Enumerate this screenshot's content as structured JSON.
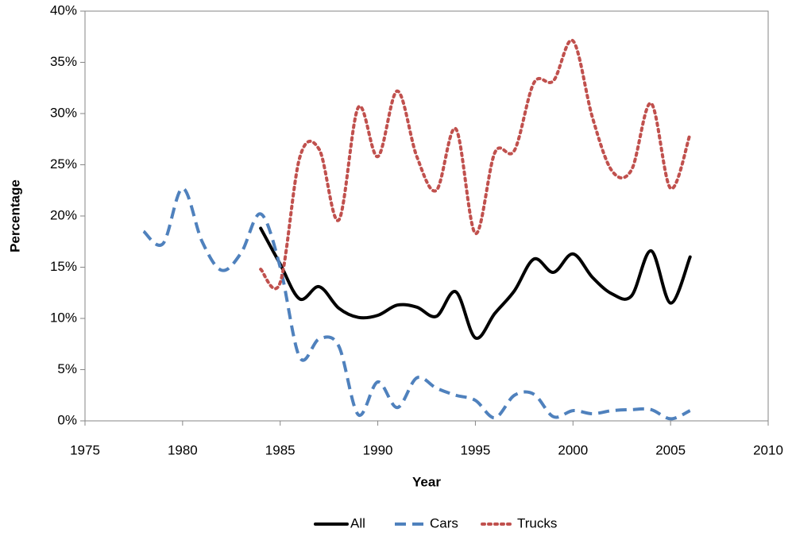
{
  "chart_data": {
    "type": "line",
    "xlabel": "Year",
    "ylabel": "Percentage",
    "x": [
      1978,
      1979,
      1980,
      1981,
      1982,
      1983,
      1984,
      1985,
      1986,
      1987,
      1988,
      1989,
      1990,
      1991,
      1992,
      1993,
      1994,
      1995,
      1996,
      1997,
      1998,
      1999,
      2000,
      2001,
      2002,
      2003,
      2004,
      2005,
      2006
    ],
    "series": [
      {
        "name": "All",
        "color": "#000000",
        "line_style": "solid",
        "values": [
          null,
          null,
          null,
          null,
          null,
          null,
          18.8,
          15.3,
          11.9,
          13.1,
          11.0,
          10.1,
          10.3,
          11.3,
          11.1,
          10.2,
          12.6,
          8.1,
          10.5,
          12.7,
          15.8,
          14.5,
          16.3,
          14.0,
          12.4,
          12.2,
          16.6,
          11.5,
          16.0
        ]
      },
      {
        "name": "Cars",
        "color": "#4f81bd",
        "line_style": "dashed",
        "values": [
          18.5,
          17.3,
          22.7,
          17.5,
          14.7,
          16.4,
          20.2,
          15.0,
          6.2,
          8.0,
          7.3,
          0.6,
          3.8,
          1.3,
          4.2,
          3.2,
          2.5,
          2.0,
          0.3,
          2.5,
          2.6,
          0.4,
          1.0,
          0.7,
          1.0,
          1.1,
          1.1,
          0.2,
          1.0
        ]
      },
      {
        "name": "Trucks",
        "color": "#c0504d",
        "line_style": "dotted",
        "values": [
          null,
          null,
          null,
          null,
          null,
          null,
          14.8,
          13.5,
          25.7,
          26.5,
          19.6,
          30.6,
          25.8,
          32.2,
          25.8,
          22.5,
          28.5,
          18.3,
          26.2,
          26.4,
          33.0,
          33.2,
          37.1,
          29.6,
          24.4,
          24.5,
          31.0,
          22.7,
          28.0
        ]
      }
    ],
    "xlim": [
      1975,
      2010
    ],
    "xticks": [
      1975,
      1980,
      1985,
      1990,
      1995,
      2000,
      2005,
      2010
    ],
    "ylim": [
      0,
      40
    ],
    "yticks": [
      {
        "value": 0,
        "label": "0%"
      },
      {
        "value": 5,
        "label": "5%"
      },
      {
        "value": 10,
        "label": "10%"
      },
      {
        "value": 15,
        "label": "15%"
      },
      {
        "value": 20,
        "label": "20%"
      },
      {
        "value": 25,
        "label": "25%"
      },
      {
        "value": 30,
        "label": "30%"
      },
      {
        "value": 35,
        "label": "35%"
      },
      {
        "value": 40,
        "label": "40%"
      }
    ],
    "grid": false,
    "legend": "bottom"
  }
}
